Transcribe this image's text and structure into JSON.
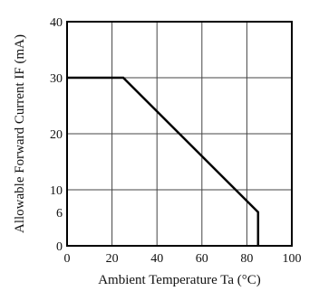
{
  "chart_data": {
    "type": "line",
    "xlabel": "Ambient Temperature Ta (°C)",
    "ylabel": "Allowable Forward Current IF (mA)",
    "xlim": [
      0,
      100
    ],
    "ylim": [
      0,
      40
    ],
    "x_ticks": [
      0,
      20,
      40,
      60,
      80,
      100
    ],
    "y_ticks": [
      0,
      6,
      10,
      20,
      30,
      40
    ],
    "grid": true,
    "series": [
      {
        "x": [
          0,
          25,
          85,
          85
        ],
        "y": [
          30,
          30,
          6,
          0
        ],
        "color": "#000000"
      }
    ]
  }
}
